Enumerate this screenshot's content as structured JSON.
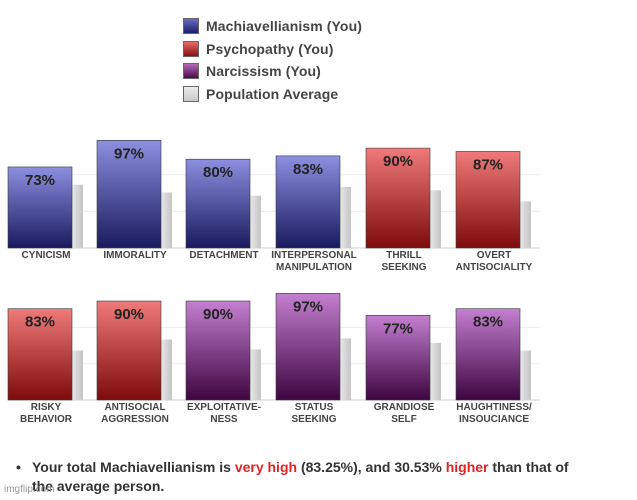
{
  "legend": [
    {
      "label": "Machiavellianism (You)",
      "color": "#2f3180"
    },
    {
      "label": "Psychopathy (You)",
      "color": "#b02020"
    },
    {
      "label": "Narcissism (You)",
      "color": "#7d1f7d"
    },
    {
      "label": "Population Average",
      "color": "#d0d0d0"
    }
  ],
  "chart_data": [
    {
      "type": "bar",
      "categories": [
        "CYNICISM",
        "IMMORALITY",
        "DETACHMENT",
        "INTERPERSONAL MANIPULATION",
        "THRILL SEEKING",
        "OVERT ANTISOCIALITY"
      ],
      "category_lines": [
        [
          "CYNICISM"
        ],
        [
          "IMMORALITY"
        ],
        [
          "DETACHMENT"
        ],
        [
          "INTERPERSONAL",
          "MANIPULATION"
        ],
        [
          "THRILL",
          "SEEKING"
        ],
        [
          "OVERT",
          "ANTISOCIALITY"
        ]
      ],
      "series": [
        {
          "name": "You",
          "values": [
            73,
            97,
            80,
            83,
            90,
            87
          ],
          "labels": [
            "73%",
            "97%",
            "80%",
            "83%",
            "90%",
            "87%"
          ],
          "scale": [
            "Machiavellianism",
            "Machiavellianism",
            "Machiavellianism",
            "Machiavellianism",
            "Psychopathy",
            "Psychopathy"
          ]
        },
        {
          "name": "Population Average",
          "values": [
            57,
            50,
            47,
            55,
            52,
            42
          ]
        }
      ],
      "ylim": [
        0,
        100
      ],
      "grid": true
    },
    {
      "type": "bar",
      "categories": [
        "RISKY BEHAVIOR",
        "ANTISOCIAL AGGRESSION",
        "EXPLOITATIVE-NESS",
        "STATUS SEEKING",
        "GRANDIOSE SELF",
        "HAUGHTINESS/ INSOUCIANCE"
      ],
      "category_lines": [
        [
          "RISKY",
          "BEHAVIOR"
        ],
        [
          "ANTISOCIAL",
          "AGGRESSION"
        ],
        [
          "EXPLOITATIVE-",
          "NESS"
        ],
        [
          "STATUS",
          "SEEKING"
        ],
        [
          "GRANDIOSE",
          "SELF"
        ],
        [
          "HAUGHTINESS/",
          "INSOUCIANCE"
        ]
      ],
      "series": [
        {
          "name": "You",
          "values": [
            83,
            90,
            90,
            97,
            77,
            83
          ],
          "labels": [
            "83%",
            "90%",
            "90%",
            "97%",
            "77%",
            "83%"
          ],
          "scale": [
            "Psychopathy",
            "Psychopathy",
            "Narcissism",
            "Narcissism",
            "Narcissism",
            "Narcissism"
          ]
        },
        {
          "name": "Population Average",
          "values": [
            45,
            55,
            46,
            56,
            52,
            45
          ]
        }
      ],
      "ylim": [
        0,
        100
      ],
      "grid": true
    }
  ],
  "summary": {
    "bullet": "•",
    "prefix": "Your total Machiavellianism is ",
    "level": "very high",
    "middle": " (83.25%), and 30.53% ",
    "direction": "higher",
    "suffix": " than that of the average person."
  },
  "watermark": "imgflip.com"
}
